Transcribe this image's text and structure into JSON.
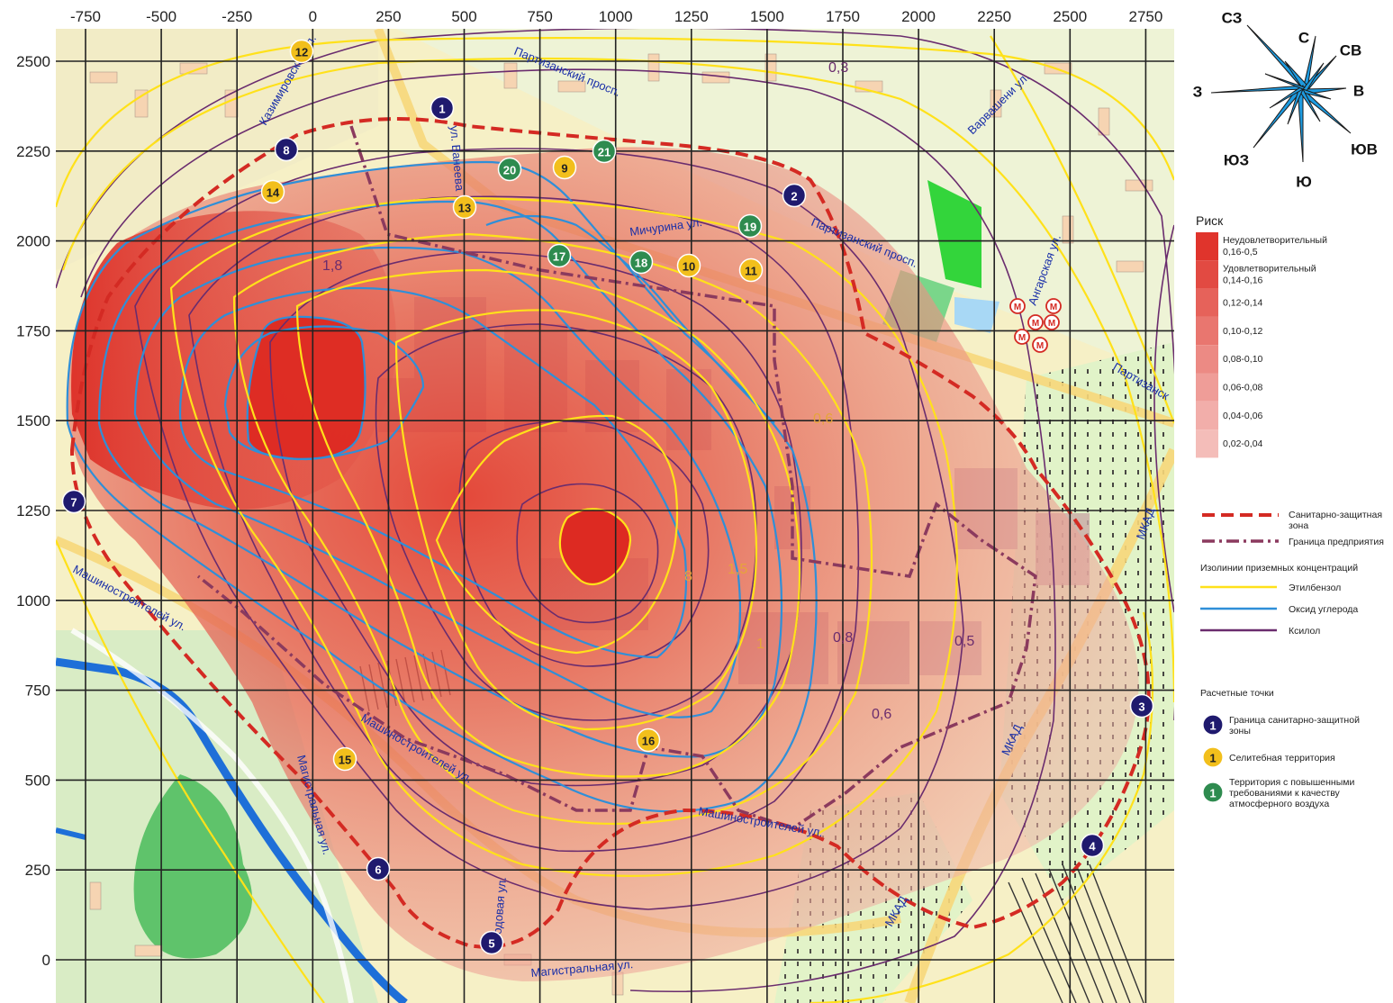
{
  "x_axis_ticks": [
    "-750",
    "-500",
    "-250",
    "0",
    "250",
    "500",
    "750",
    "1000",
    "1250",
    "1500",
    "1750",
    "2000",
    "2250",
    "2500",
    "2750"
  ],
  "y_axis_ticks": [
    "2500",
    "2250",
    "2000",
    "1750",
    "1500",
    "1250",
    "1000",
    "750",
    "500",
    "250",
    "0"
  ],
  "compass": {
    "N": "С",
    "NE": "СВ",
    "E": "В",
    "SE": "ЮВ",
    "S": "Ю",
    "SW": "ЮЗ",
    "W": "З",
    "NW": "СЗ"
  },
  "streets": [
    {
      "text": "Партизанский просп."
    },
    {
      "text": "Партизанский просп."
    },
    {
      "text": "Мичурина ул."
    },
    {
      "text": "Машиностроителей ул."
    },
    {
      "text": "Машиностроителей ул."
    },
    {
      "text": "Машиностроителей ул."
    },
    {
      "text": "Магистральная ул."
    },
    {
      "text": "Магистральная ул."
    },
    {
      "text": "Казимировская ул."
    },
    {
      "text": "ул. Ванеева"
    },
    {
      "text": "Варвашени ул."
    },
    {
      "text": "Ангарская ул."
    },
    {
      "text": "МКАД"
    },
    {
      "text": "МКАД"
    },
    {
      "text": "МКАД"
    },
    {
      "text": "Партизанск"
    },
    {
      "text": "Плодовая ул."
    }
  ],
  "iso_values": [
    {
      "text": "1,5"
    },
    {
      "text": "1"
    },
    {
      "text": "0,8"
    },
    {
      "text": "0,5"
    },
    {
      "text": "0,6"
    },
    {
      "text": "0,3"
    },
    {
      "text": "1,8"
    },
    {
      "text": "0,6"
    },
    {
      "text": "8"
    }
  ],
  "points": [
    {
      "n": "1",
      "type": "szz"
    },
    {
      "n": "2",
      "type": "szz"
    },
    {
      "n": "3",
      "type": "szz"
    },
    {
      "n": "4",
      "type": "szz"
    },
    {
      "n": "5",
      "type": "szz"
    },
    {
      "n": "6",
      "type": "szz"
    },
    {
      "n": "7",
      "type": "szz"
    },
    {
      "n": "8",
      "type": "szz"
    },
    {
      "n": "9",
      "type": "res"
    },
    {
      "n": "10",
      "type": "res"
    },
    {
      "n": "11",
      "type": "res"
    },
    {
      "n": "12",
      "type": "res"
    },
    {
      "n": "13",
      "type": "res"
    },
    {
      "n": "14",
      "type": "res"
    },
    {
      "n": "15",
      "type": "res"
    },
    {
      "n": "16",
      "type": "res"
    },
    {
      "n": "17",
      "type": "spec"
    },
    {
      "n": "18",
      "type": "spec"
    },
    {
      "n": "19",
      "type": "spec"
    },
    {
      "n": "20",
      "type": "spec"
    },
    {
      "n": "21",
      "type": "spec"
    }
  ],
  "metro_symbol": "М",
  "legend": {
    "risk_title": "Риск",
    "risk_classes": [
      {
        "label1": "Неудовлетворительный",
        "label2": "0,16-0,5",
        "color": "#e0342c"
      },
      {
        "label1": "Удовлетворительный",
        "label2": "0,14-0,16",
        "color": "#e24a42"
      },
      {
        "label1": "",
        "label2": "0,12-0,14",
        "color": "#e6625a"
      },
      {
        "label1": "",
        "label2": "0,10-0,12",
        "color": "#e9766f"
      },
      {
        "label1": "",
        "label2": "0,08-0,10",
        "color": "#ec8a84"
      },
      {
        "label1": "",
        "label2": "0,06-0,08",
        "color": "#ef9d98"
      },
      {
        "label1": "",
        "label2": "0,04-0,06",
        "color": "#f2aeaa"
      },
      {
        "label1": "",
        "label2": "0,02-0,04",
        "color": "#f4bdb9"
      }
    ],
    "szz_label": "Санитарно-защитная зона",
    "enterprise_label": "Граница предприятия",
    "isolines_title": "Изолинии приземных концентраций",
    "isolines": [
      {
        "label": "Этилбензол",
        "color": "#ffe11a"
      },
      {
        "label": "Оксид углерода",
        "color": "#2f8fd8"
      },
      {
        "label": "Ксилол",
        "color": "#6a2c6e"
      }
    ],
    "points_title": "Расчетные точки",
    "point_types": [
      {
        "num": "1",
        "label": "Граница санитарно-защитной зоны",
        "color": "#1f1a6e"
      },
      {
        "num": "1",
        "label": "Селитебная территория",
        "color": "#f2bf1c"
      },
      {
        "num": "1",
        "label": "Территория с повышенными требованиями к качеству атмосферного воздуха",
        "color": "#2e8b4f"
      }
    ]
  }
}
